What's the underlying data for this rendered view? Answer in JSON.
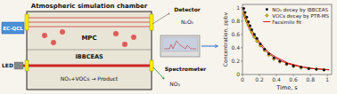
{
  "chart_data": {
    "type": "scatter",
    "title": "Atmospheric simulation chamber",
    "annotations": [
      "EC-QCL",
      "LED",
      "MPC",
      "IBBCEAS",
      "NO₃+VOCs → Product",
      "Detector",
      "N₂O₅",
      "Spectrometer",
      "NO₃"
    ],
    "x_label": "Time, s",
    "y_label": "Concentration, ppbv",
    "xlim": [
      0,
      1.05
    ],
    "ylim": [
      0,
      1.05
    ],
    "xticks": [
      0,
      0.2,
      0.4,
      0.6,
      0.8,
      1
    ],
    "yticks": [
      0,
      0.2,
      0.4,
      0.6,
      0.8,
      1
    ],
    "grid": false,
    "legend": "upper right",
    "series": [
      {
        "name": "NO₃ decay by IBBCEAS",
        "type": "scatter",
        "marker": "circle",
        "color": "#111111",
        "x": [
          0.015,
          0.03,
          0.05,
          0.07,
          0.09,
          0.11,
          0.14,
          0.17,
          0.21,
          0.26,
          0.31,
          0.37,
          0.44,
          0.52,
          0.6,
          0.69,
          0.78,
          0.87,
          0.96
        ],
        "values": [
          0.99,
          0.93,
          0.86,
          0.79,
          0.73,
          0.67,
          0.6,
          0.54,
          0.46,
          0.38,
          0.31,
          0.25,
          0.2,
          0.16,
          0.13,
          0.11,
          0.09,
          0.08,
          0.07
        ]
      },
      {
        "name": "VOCs decay by PTR-MS",
        "type": "scatter",
        "marker": "diamond",
        "color": "#c8b400",
        "x": [
          0.015,
          0.03,
          0.05,
          0.07,
          0.09,
          0.11,
          0.14,
          0.17,
          0.21,
          0.26,
          0.31,
          0.37,
          0.44,
          0.52,
          0.6,
          0.69,
          0.78,
          0.87,
          0.96
        ],
        "values": [
          0.92,
          0.87,
          0.8,
          0.74,
          0.68,
          0.63,
          0.56,
          0.5,
          0.43,
          0.36,
          0.29,
          0.23,
          0.19,
          0.15,
          0.12,
          0.1,
          0.09,
          0.08,
          0.07
        ]
      },
      {
        "name": "Facsimile fit",
        "type": "line",
        "line_style": "solid",
        "color": "#cc0000",
        "x": [
          0.005,
          0.02,
          0.04,
          0.06,
          0.09,
          0.12,
          0.16,
          0.2,
          0.25,
          0.31,
          0.38,
          0.46,
          0.54,
          0.63,
          0.72,
          0.82,
          0.92,
          1.02
        ],
        "values": [
          1.0,
          0.93,
          0.86,
          0.79,
          0.71,
          0.64,
          0.56,
          0.49,
          0.41,
          0.33,
          0.27,
          0.22,
          0.17,
          0.14,
          0.11,
          0.09,
          0.08,
          0.07
        ]
      },
      {
        "name": "Facsimile fit",
        "type": "line",
        "line_style": "solid",
        "color": "#cc0000",
        "x": [
          0.005,
          0.02,
          0.04,
          0.06,
          0.09,
          0.12,
          0.16,
          0.2,
          0.25,
          0.31,
          0.38,
          0.46,
          0.54,
          0.63,
          0.72,
          0.82,
          0.92,
          1.02
        ],
        "values": [
          0.93,
          0.87,
          0.8,
          0.74,
          0.66,
          0.59,
          0.52,
          0.46,
          0.38,
          0.31,
          0.25,
          0.2,
          0.16,
          0.13,
          0.11,
          0.09,
          0.08,
          0.07
        ]
      }
    ]
  }
}
